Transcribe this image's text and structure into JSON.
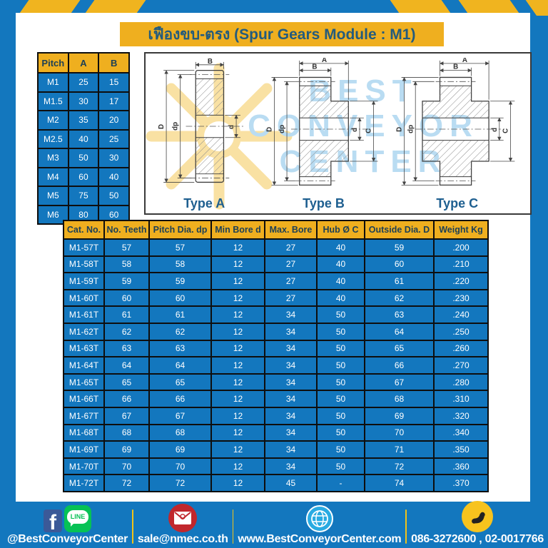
{
  "title": "เฟืองขบ-ตรง (Spur Gears Module : M1)",
  "pitch_table": {
    "headers": [
      "Pitch",
      "A",
      "B"
    ],
    "rows": [
      [
        "M1",
        "25",
        "15"
      ],
      [
        "M1.5",
        "30",
        "17"
      ],
      [
        "M2",
        "35",
        "20"
      ],
      [
        "M2.5",
        "40",
        "25"
      ],
      [
        "M3",
        "50",
        "30"
      ],
      [
        "M4",
        "60",
        "40"
      ],
      [
        "M5",
        "75",
        "50"
      ],
      [
        "M6",
        "80",
        "60"
      ]
    ]
  },
  "diagrams": {
    "dim_labels": {
      "A": "A",
      "B": "B",
      "D": "D",
      "dp": "dp",
      "d": "d",
      "C": "C"
    },
    "labels": {
      "type_a": "Type A",
      "type_b": "Type B",
      "type_c": "Type C"
    },
    "watermark": {
      "line1": "BEST",
      "line2": "CONVEYOR",
      "line3": "CENTER"
    }
  },
  "gear_table": {
    "headers": [
      "Cat. No.",
      "No. Teeth",
      "Pitch Dia. dp",
      "Min Bore d",
      "Max. Bore",
      "Hub Ø C",
      "Outside Dia. D",
      "Weight Kg"
    ],
    "rows": [
      [
        "M1-57T",
        "57",
        "57",
        "12",
        "27",
        "40",
        "59",
        ".200"
      ],
      [
        "M1-58T",
        "58",
        "58",
        "12",
        "27",
        "40",
        "60",
        ".210"
      ],
      [
        "M1-59T",
        "59",
        "59",
        "12",
        "27",
        "40",
        "61",
        ".220"
      ],
      [
        "M1-60T",
        "60",
        "60",
        "12",
        "27",
        "40",
        "62",
        ".230"
      ],
      [
        "M1-61T",
        "61",
        "61",
        "12",
        "34",
        "50",
        "63",
        ".240"
      ],
      [
        "M1-62T",
        "62",
        "62",
        "12",
        "34",
        "50",
        "64",
        ".250"
      ],
      [
        "M1-63T",
        "63",
        "63",
        "12",
        "34",
        "50",
        "65",
        ".260"
      ],
      [
        "M1-64T",
        "64",
        "64",
        "12",
        "34",
        "50",
        "66",
        ".270"
      ],
      [
        "M1-65T",
        "65",
        "65",
        "12",
        "34",
        "50",
        "67",
        ".280"
      ],
      [
        "M1-66T",
        "66",
        "66",
        "12",
        "34",
        "50",
        "68",
        ".310"
      ],
      [
        "M1-67T",
        "67",
        "67",
        "12",
        "34",
        "50",
        "69",
        ".320"
      ],
      [
        "M1-68T",
        "68",
        "68",
        "12",
        "34",
        "50",
        "70",
        ".340"
      ],
      [
        "M1-69T",
        "69",
        "69",
        "12",
        "34",
        "50",
        "71",
        ".350"
      ],
      [
        "M1-70T",
        "70",
        "70",
        "12",
        "34",
        "50",
        "72",
        ".360"
      ],
      [
        "M1-72T",
        "72",
        "72",
        "12",
        "45",
        "-",
        "74",
        ".370"
      ]
    ]
  },
  "footer": {
    "facebook_glyph": "f",
    "line_glyph": "LINE",
    "social_handle": "@BestConveyorCenter",
    "email": "sale@nmec.co.th",
    "website": "www.BestConveyorCenter.com",
    "phones": "086-3272600 , 02-0017766"
  },
  "colors": {
    "frame_blue": "#1377BE",
    "accent_yellow": "#EFAF1F",
    "header_text": "#1E4055",
    "title_text": "#235B7D",
    "type_label_blue": "#1E5F90",
    "facebook_blue": "#3B5998",
    "line_green": "#06C255",
    "envelope_red": "#C1272D",
    "globe_blue": "#29ABE2",
    "phone_yellow": "#F7C31E"
  }
}
